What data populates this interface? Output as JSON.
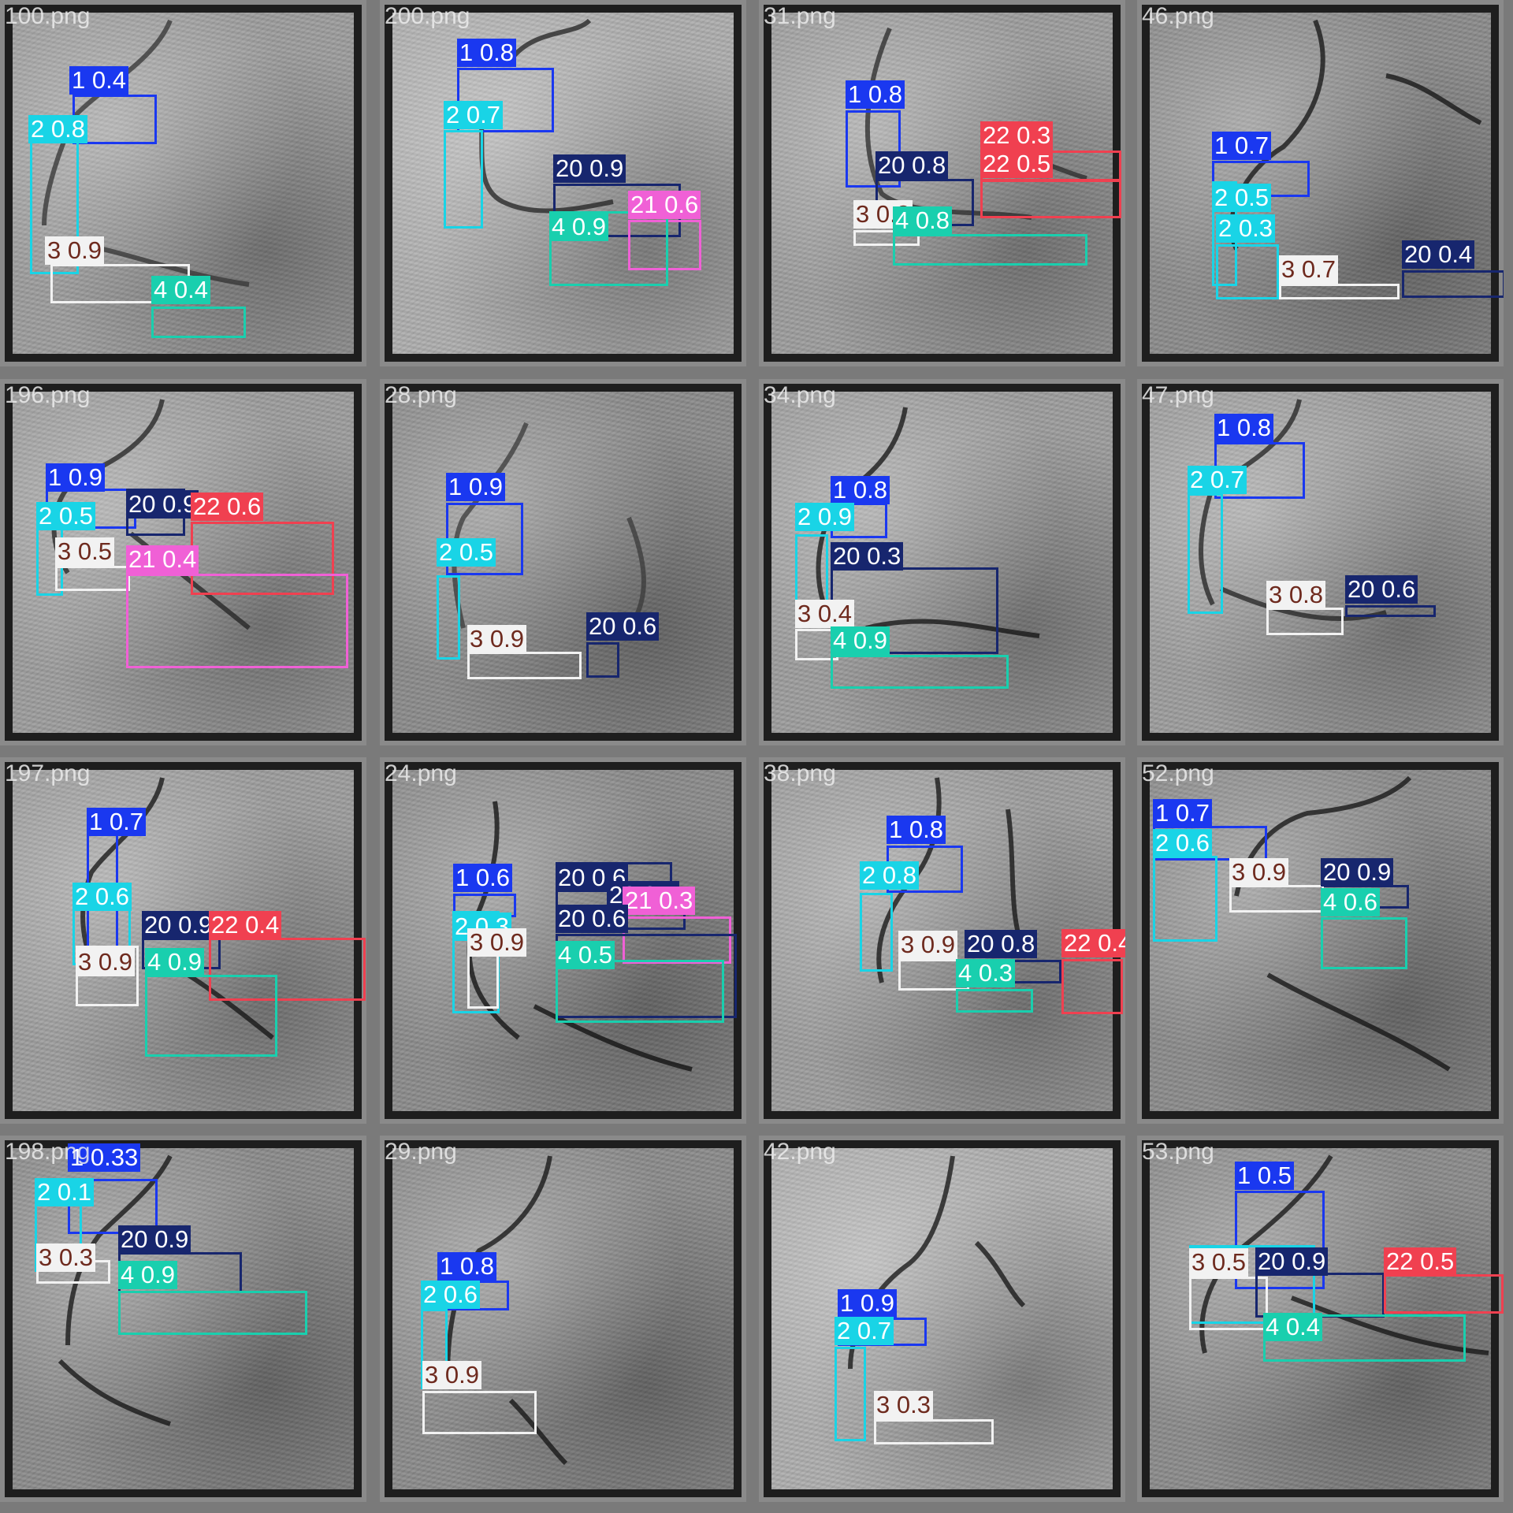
{
  "classes": {
    "1": {
      "color": "#1a38f0",
      "text_color": "#ffffff"
    },
    "2": {
      "color": "#19d4e6",
      "text_color": "#ffffff"
    },
    "3": {
      "color": "#f2f2f2",
      "text_color": "#6e2a1e"
    },
    "4": {
      "color": "#19cfae",
      "text_color": "#ffffff"
    },
    "20": {
      "color": "#17266e",
      "text_color": "#ffffff"
    },
    "21": {
      "color": "#f060d6",
      "text_color": "#ffffff"
    },
    "22": {
      "color": "#f04050",
      "text_color": "#ffffff"
    }
  },
  "tiles": [
    {
      "filename": "100.png",
      "labels": [
        "1 0.4",
        "2 0.8",
        "3 0.9",
        "4 0.4"
      ]
    },
    {
      "filename": "200.png",
      "labels": [
        "1 0.8",
        "2 0.7",
        "20 0.9",
        "21 0.6",
        "4 0.9"
      ]
    },
    {
      "filename": "31.png",
      "labels": [
        "1 0.8",
        "22 0.3",
        "20 0.8",
        "22 0.5",
        "3 0.3",
        "4 0.8"
      ]
    },
    {
      "filename": "46.png",
      "labels": [
        "1 0.7",
        "2 0.5",
        "2 0.3",
        "3 0.7",
        "20 0.4"
      ]
    },
    {
      "filename": "196.png",
      "labels": [
        "1 0.9",
        "2 0.5",
        "20 0.9",
        "22 0.6",
        "3 0.5",
        "21 0.4"
      ]
    },
    {
      "filename": "28.png",
      "labels": [
        "1 0.9",
        "2 0.5",
        "3 0.9",
        "20 0.6"
      ]
    },
    {
      "filename": "34.png",
      "labels": [
        "1 0.8",
        "2 0.9",
        "20 0.3",
        "3 0.4",
        "4 0.9"
      ]
    },
    {
      "filename": "47.png",
      "labels": [
        "1 0.8",
        "2 0.7",
        "3 0.8",
        "20 0.6"
      ]
    },
    {
      "filename": "197.png",
      "labels": [
        "1 0.7",
        "2 0.6",
        "20 0.9",
        "22 0.4",
        "3 0.9",
        "4 0.9"
      ]
    },
    {
      "filename": "24.png",
      "labels": [
        "1 0.6",
        "20 0.6",
        "20 0.7",
        "21 0.3",
        "2 0.3",
        "3 0.9",
        "20 0.6",
        "4 0.5"
      ]
    },
    {
      "filename": "38.png",
      "labels": [
        "1 0.8",
        "2 0.8",
        "3 0.9",
        "20 0.8",
        "22 0.4",
        "4 0.3"
      ]
    },
    {
      "filename": "52.png",
      "labels": [
        "1 0.7",
        "2 0.6",
        "20 0.9",
        "3 0.9",
        "4 0.6"
      ]
    },
    {
      "filename": "198.png",
      "labels": [
        "1 0.33",
        "2 0.1",
        "20 0.9",
        "3 0.3",
        "4 0.9"
      ]
    },
    {
      "filename": "29.png",
      "labels": [
        "1 0.8",
        "2 0.6",
        "3 0.9"
      ]
    },
    {
      "filename": "42.png",
      "labels": [
        "1 0.9",
        "2 0.7",
        "3 0.3"
      ]
    },
    {
      "filename": "53.png",
      "labels": [
        "1 0.5",
        "2 0.5",
        "3 0.5",
        "20 0.9",
        "22 0.5",
        "4 0.4"
      ]
    }
  ]
}
